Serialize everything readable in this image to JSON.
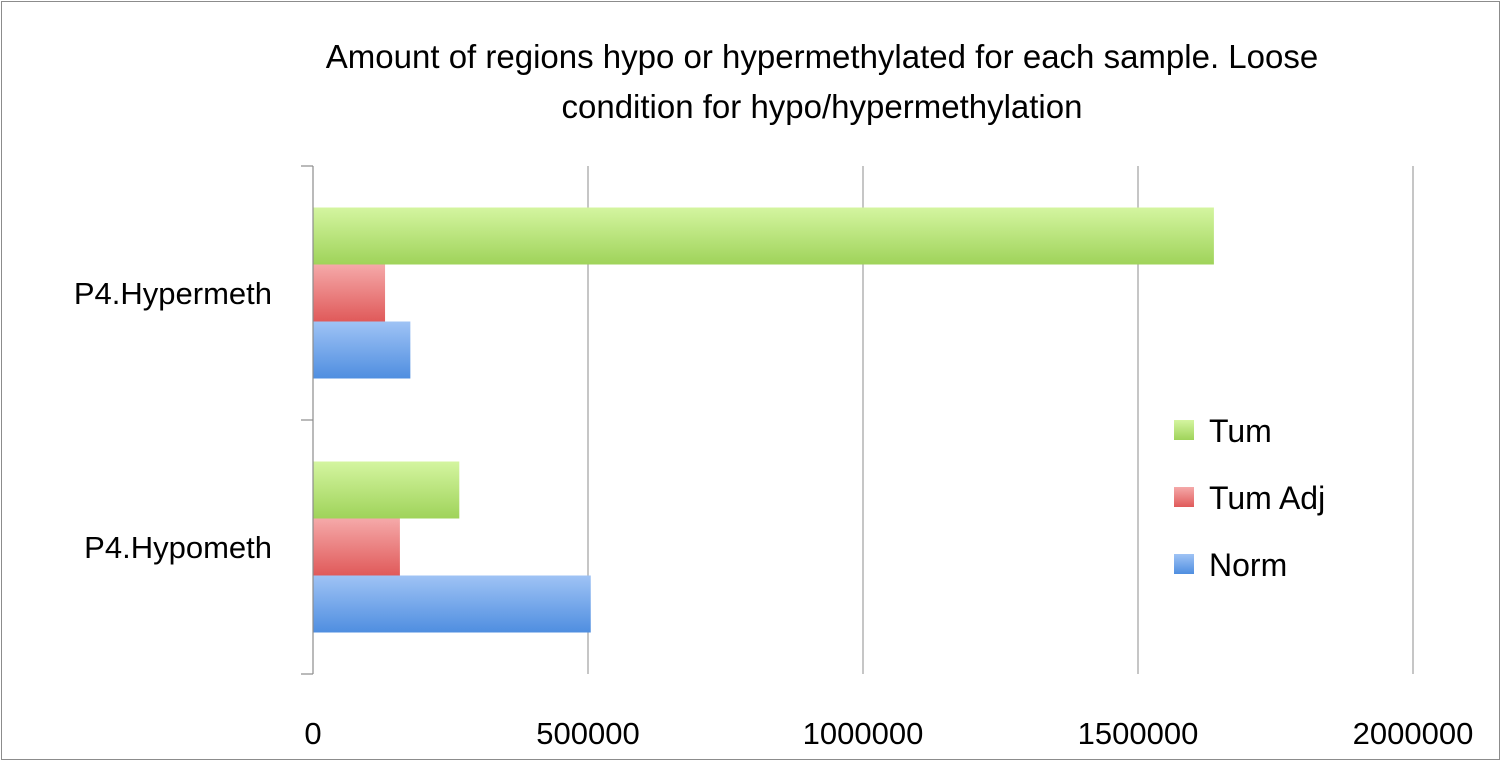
{
  "chart_data": {
    "type": "bar",
    "orientation": "horizontal",
    "title_lines": [
      "Amount of regions hypo or hypermethylated for each sample. Loose",
      "condition for hypo/hypermethylation"
    ],
    "categories": [
      "P4.Hypermeth",
      "P4.Hypometh"
    ],
    "series": [
      {
        "name": "Tum",
        "color": "#9fd35a",
        "color_light": "#d4f5a0",
        "values": [
          1638000,
          266000
        ]
      },
      {
        "name": "Tum Adj",
        "color": "#e05a5a",
        "color_light": "#f5a9a9",
        "values": [
          131000,
          158000
        ]
      },
      {
        "name": "Norm",
        "color": "#4f8ee0",
        "color_light": "#9fc3f5",
        "values": [
          177000,
          505000
        ]
      }
    ],
    "xlim": [
      0,
      2000000
    ],
    "xticks": [
      "0",
      "500000",
      "1000000",
      "1500000",
      "2000000"
    ],
    "grid": true,
    "legend_position": "right"
  }
}
